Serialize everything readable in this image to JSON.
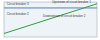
{
  "chart_data": {
    "type": "line",
    "x": [
      0,
      10
    ],
    "series": [
      {
        "color": "#2e9e3e",
        "values": [
          1,
          9.5
        ]
      },
      {
        "color": "#5a7fb5",
        "values": [
          8.3,
          8.3
        ]
      }
    ],
    "xlim": [
      0,
      10
    ],
    "ylim": [
      0,
      10
    ],
    "tick_labels": false,
    "grid": false,
    "annotations": [
      {
        "text": "Circuit breaker 3",
        "x": 0.3,
        "y": 9.2
      },
      {
        "text": "Upstream of circuit breaker 1",
        "x": 5.2,
        "y": 9.6
      },
      {
        "text": "Circuit breaker 2",
        "x": 0.3,
        "y": 6.2
      },
      {
        "text": "Downstream of circuit breaker 2",
        "x": 4.2,
        "y": 5.6
      }
    ]
  }
}
